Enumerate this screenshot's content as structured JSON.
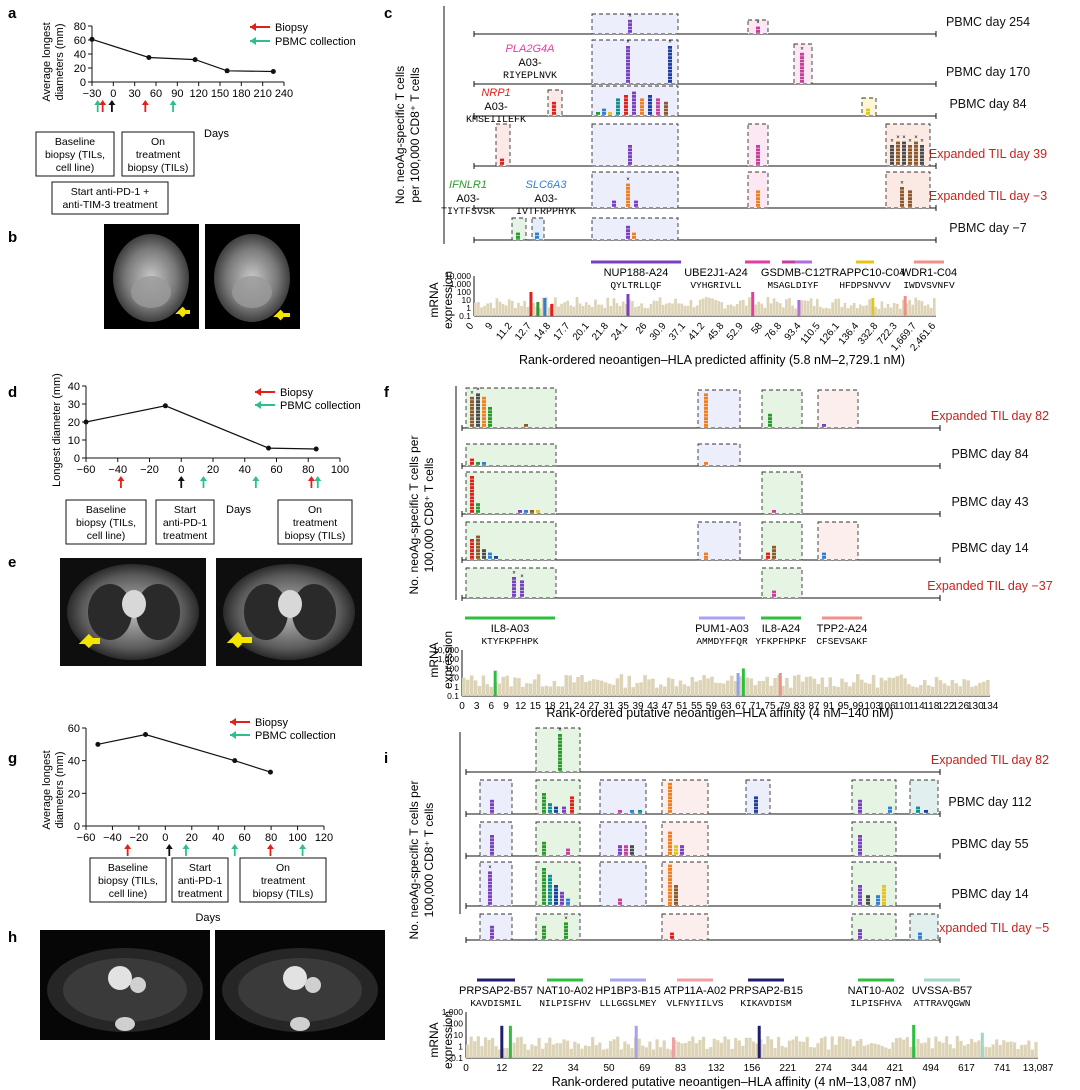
{
  "panel_letters": {
    "a": "a",
    "b": "b",
    "c": "c",
    "d": "d",
    "e": "e",
    "f": "f",
    "g": "g",
    "h": "h",
    "i": "i"
  },
  "legend": {
    "biopsy": "Biopsy",
    "pbmc": "PBMC collection",
    "arrow_red": "#e0201b",
    "arrow_green": "#2fbf8f"
  },
  "a": {
    "ylabel1": "Average longest",
    "ylabel2": "diameters (mm)",
    "yticks": [
      "0",
      "20",
      "40",
      "60",
      "80"
    ],
    "xticks": [
      "−30",
      "0",
      "30",
      "60",
      "90",
      "120",
      "150",
      "180",
      "210",
      "240"
    ],
    "xlabel": "Days",
    "box_baseline": [
      "Baseline",
      "biopsy (TILs,",
      "cell line)"
    ],
    "box_on": [
      "On",
      "treatment",
      "biopsy (TILs)"
    ],
    "box_start": [
      "Start anti-PD-1 +",
      "anti-TIM-3 treatment"
    ]
  },
  "c": {
    "ylabel1": "No. neoAg-specific T cells",
    "ylabel2": "per 100,000 CD8⁺ T cells",
    "rows": [
      {
        "label": "PBMC day 254",
        "red": false
      },
      {
        "label": "PBMC day 170",
        "red": false
      },
      {
        "label": "PBMC day 84",
        "red": false
      },
      {
        "label": "Expanded TIL day 39",
        "red": true
      },
      {
        "label": "Expanded TIL day −3",
        "red": true
      },
      {
        "label": "PBMC day −7",
        "red": false
      }
    ],
    "epitopes": [
      {
        "gene": "PLA2G4A",
        "hla": "A03-",
        "seq": "RIYEPLNVK",
        "color": "#e23ea0"
      },
      {
        "gene": "NRP1",
        "hla": "A03-",
        "seq": "KMSEIILEFK",
        "color": "#e0201b"
      },
      {
        "gene": "IFNLR1",
        "hla": "A03-",
        "seq": "TIYTFSVSK",
        "color": "#2a9a2a"
      },
      {
        "gene": "SLC6A3",
        "hla": "A03-",
        "seq": "IVTFRPPHYK",
        "color": "#2f7fd6"
      },
      {
        "gene": "NUP188",
        "hla": "-A24",
        "seq": "QYLTRLLQF"
      },
      {
        "gene": "UBE2J1",
        "hla": "-A24",
        "seq": "VYHGRIVLL"
      },
      {
        "gene": "GSDMB",
        "hla": "-C12",
        "seq": "MSAGLDIYF"
      },
      {
        "gene": "TRAPPC10",
        "hla": "-C04",
        "seq": "HFDPSNVVV"
      },
      {
        "gene": "WDR1",
        "hla": "-C04",
        "seq": "IWDVSVNFV"
      }
    ],
    "mrna1": "mRNA",
    "mrna2": "expression",
    "mrna_ticks": [
      "10,000",
      "1,000",
      "100",
      "10",
      "1",
      "0.1"
    ],
    "xticks": [
      "0",
      "9",
      "11.2",
      "12.7",
      "14.8",
      "17.7",
      "20.1",
      "21.8",
      "24.1",
      "26",
      "30.9",
      "37.1",
      "41.2",
      "45.8",
      "52.9",
      "58",
      "76.8",
      "93.4",
      "110.5",
      "126.1",
      "136.4",
      "332.8",
      "722.3",
      "1,669.7",
      "2,461.6"
    ],
    "xlabel": "Rank-ordered neoantigen–HLA predicted affinity (5.8 nM–2,729.1 nM)"
  },
  "d": {
    "ylabel": "Longest diameter (mm)",
    "yticks": [
      "0",
      "10",
      "20",
      "30",
      "40"
    ],
    "xticks": [
      "−60",
      "−40",
      "−20",
      "0",
      "20",
      "40",
      "60",
      "80",
      "100"
    ],
    "xlabel": "Days",
    "box_baseline": [
      "Baseline",
      "biopsy (TILs,",
      "cell line)"
    ],
    "box_start": [
      "Start",
      "anti-PD-1",
      "treatment"
    ],
    "box_on": [
      "On",
      "treatment",
      "biopsy (TILs)"
    ]
  },
  "f": {
    "ylabel1": "No. neoAg-specific T cells per",
    "ylabel2": "100,000 CD8⁺ T cells",
    "rows": [
      {
        "label": "Expanded TIL day 82",
        "red": true
      },
      {
        "label": "PBMC day 84",
        "red": false
      },
      {
        "label": "PBMC day 43",
        "red": false
      },
      {
        "label": "PBMC day 14",
        "red": false
      },
      {
        "label": "Expanded TIL day −37",
        "red": true
      }
    ],
    "epitopes": [
      {
        "gene": "IL8",
        "hla": "-A03",
        "seq": "KTYFKPFHPK"
      },
      {
        "gene": "PUM1",
        "hla": "-A03",
        "seq": "AMMDYFFQR"
      },
      {
        "gene": "IL8",
        "hla": "-A24",
        "seq": "YFKPFHPKF"
      },
      {
        "gene": "TPP2",
        "hla": "-A24",
        "seq": "CFSEVSAKF"
      }
    ],
    "mrna1": "mRNA",
    "mrna2": "expression",
    "mrna_ticks": [
      "10,000",
      "1,000",
      "100",
      "10",
      "1",
      "0.1"
    ],
    "xticks": [
      "0",
      "3",
      "6",
      "9",
      "12",
      "15",
      "18",
      "21",
      "24",
      "27",
      "31",
      "35",
      "39",
      "43",
      "47",
      "51",
      "55",
      "59",
      "63",
      "67",
      "71",
      "75",
      "79",
      "83",
      "87",
      "91",
      "95",
      "99",
      "103",
      "106",
      "110",
      "114",
      "118",
      "122",
      "126",
      "130",
      "134"
    ],
    "xlabel": "Rank-ordered putative neoantigen–HLA affinity (4 nM–140 nM)"
  },
  "g": {
    "ylabel1": "Average longest",
    "ylabel2": "diameters (mm)",
    "yticks": [
      "0",
      "20",
      "40",
      "60"
    ],
    "xticks": [
      "−60",
      "−40",
      "−20",
      "0",
      "20",
      "40",
      "60",
      "80",
      "100",
      "120"
    ],
    "xlabel": "Days",
    "box_baseline": [
      "Baseline",
      "biopsy (TILs,",
      "cell line)"
    ],
    "box_start": [
      "Start",
      "anti-PD-1",
      "treatment"
    ],
    "box_on": [
      "On",
      "treatment",
      "biopsy (TILs)"
    ]
  },
  "i": {
    "ylabel1": "No. neoAg-specific T cells per",
    "ylabel2": "100,000 CD8⁺ T cells",
    "rows": [
      {
        "label": "Expanded TIL day 82",
        "red": true
      },
      {
        "label": "PBMC day 112",
        "red": false
      },
      {
        "label": "PBMC day 55",
        "red": false
      },
      {
        "label": "PBMC day 14",
        "red": false
      },
      {
        "label": "Expanded TIL day −5",
        "red": true
      }
    ],
    "epitopes": [
      {
        "gene": "PRPSAP2",
        "hla": "-B57",
        "seq": "KAVDISMIL"
      },
      {
        "gene": "NAT10",
        "hla": "-A02",
        "seq": "NILPISFHV"
      },
      {
        "gene": "HP1BP3",
        "hla": "-B15",
        "seq": "LLLGGSLMEY"
      },
      {
        "gene": "ATP11A",
        "hla": "-A02",
        "seq": "VLFNYIILVS"
      },
      {
        "gene": "PRPSAP2",
        "hla": "-B15",
        "seq": "KIKAVDISM"
      },
      {
        "gene": "NAT10",
        "hla": "-A02",
        "seq": "ILPISFHVA"
      },
      {
        "gene": "UVSSA",
        "hla": "-B57",
        "seq": "ATTRAVQGWN"
      }
    ],
    "mrna1": "mRNA",
    "mrna2": "expression",
    "mrna_ticks": [
      "1,000",
      "100",
      "10",
      "1",
      "0.1"
    ],
    "xticks": [
      "0",
      "12",
      "22",
      "34",
      "50",
      "69",
      "83",
      "132",
      "156",
      "221",
      "274",
      "344",
      "421",
      "494",
      "617",
      "741",
      "13,087"
    ],
    "xlabel": "Rank-ordered putative neoantigen–HLA affinity (4 nM–13,087 nM)"
  },
  "chart_data": [
    {
      "type": "line",
      "title": "a",
      "x": [
        -30,
        50,
        115,
        160,
        225
      ],
      "y": [
        61,
        35,
        32,
        16,
        15
      ],
      "xlabel": "Days",
      "ylabel": "Average longest diameters (mm)",
      "ylim": [
        0,
        80
      ]
    },
    {
      "type": "line",
      "title": "d",
      "x": [
        -60,
        -10,
        55,
        85
      ],
      "y": [
        20,
        29,
        5.5,
        5
      ],
      "xlabel": "Days",
      "ylabel": "Longest diameter (mm)",
      "ylim": [
        0,
        40
      ]
    },
    {
      "type": "line",
      "title": "g",
      "x": [
        -60,
        -20,
        55,
        85
      ],
      "y": [
        50,
        56,
        40,
        33
      ],
      "xlabel": "Days",
      "ylabel": "Average longest diameters (mm)",
      "ylim": [
        0,
        60
      ]
    }
  ]
}
